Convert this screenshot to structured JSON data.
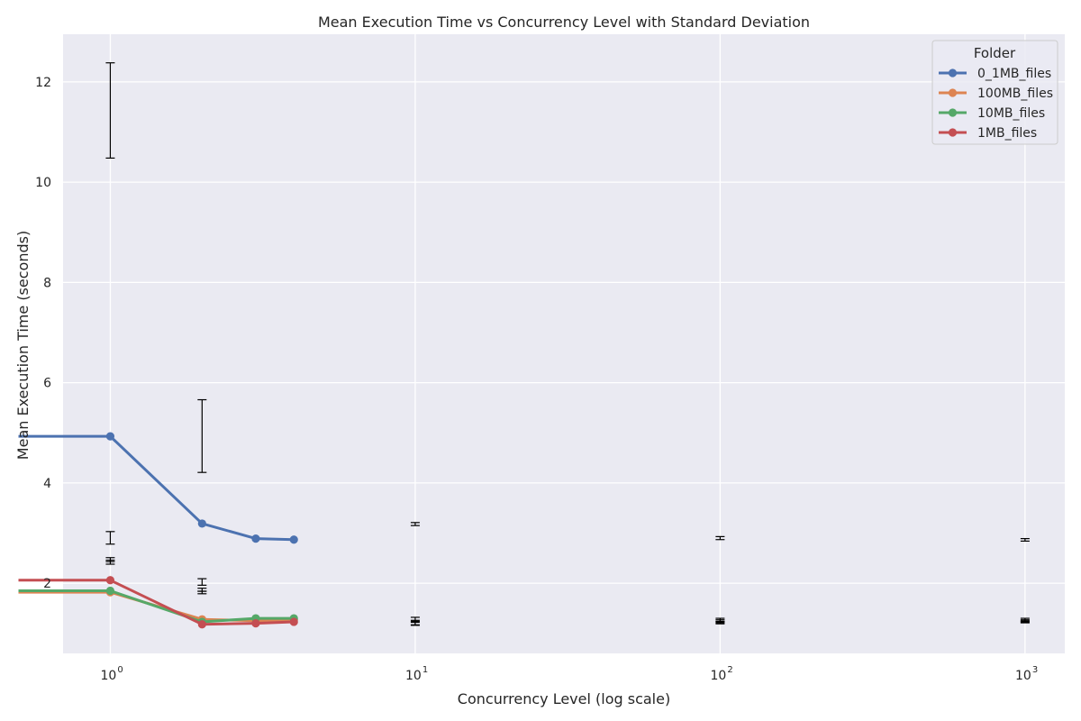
{
  "chart_data": {
    "type": "line",
    "title": "Mean Execution Time vs Concurrency Level with Standard Deviation",
    "xlabel": "Concurrency Level (log scale)",
    "ylabel": "Mean Execution Time (seconds)",
    "xscale": "log",
    "xlim": [
      0.7,
      1350
    ],
    "ylim": [
      0.6,
      12.95
    ],
    "grid": true,
    "legend": {
      "title": "Folder",
      "position": "top-right"
    },
    "x_ticks": [
      {
        "value": 1,
        "base": "10",
        "exp": "0"
      },
      {
        "value": 10,
        "base": "10",
        "exp": "1"
      },
      {
        "value": 100,
        "base": "10",
        "exp": "2"
      },
      {
        "value": 1000,
        "base": "10",
        "exp": "3"
      }
    ],
    "y_ticks": [
      {
        "value": 2,
        "label": "2"
      },
      {
        "value": 4,
        "label": "4"
      },
      {
        "value": 6,
        "label": "6"
      },
      {
        "value": 8,
        "label": "8"
      },
      {
        "value": 10,
        "label": "10"
      },
      {
        "value": 12,
        "label": "12"
      }
    ],
    "series": [
      {
        "name": "0_1MB_files",
        "color": "#4c72b0",
        "points": [
          {
            "x": 0.5,
            "y": 4.93
          },
          {
            "x": 1,
            "y": 4.93
          },
          {
            "x": 2,
            "y": 3.19
          },
          {
            "x": 3,
            "y": 2.89
          },
          {
            "x": 4,
            "y": 2.87
          }
        ]
      },
      {
        "name": "100MB_files",
        "color": "#dd8452",
        "points": [
          {
            "x": 0.5,
            "y": 1.82
          },
          {
            "x": 1,
            "y": 1.82
          },
          {
            "x": 2,
            "y": 1.28
          },
          {
            "x": 3,
            "y": 1.25
          },
          {
            "x": 4,
            "y": 1.27
          }
        ]
      },
      {
        "name": "10MB_files",
        "color": "#55a868",
        "points": [
          {
            "x": 0.5,
            "y": 1.85
          },
          {
            "x": 1,
            "y": 1.85
          },
          {
            "x": 2,
            "y": 1.23
          },
          {
            "x": 3,
            "y": 1.3
          },
          {
            "x": 4,
            "y": 1.3
          }
        ]
      },
      {
        "name": "1MB_files",
        "color": "#c44e52",
        "points": [
          {
            "x": 0.5,
            "y": 2.06
          },
          {
            "x": 1,
            "y": 2.06
          },
          {
            "x": 2,
            "y": 1.18
          },
          {
            "x": 3,
            "y": 1.2
          },
          {
            "x": 4,
            "y": 1.23
          }
        ]
      }
    ],
    "error_bars": [
      {
        "x": 1,
        "low": 10.48,
        "high": 12.38
      },
      {
        "x": 1,
        "low": 2.78,
        "high": 3.03
      },
      {
        "x": 1,
        "low": 2.43,
        "high": 2.51
      },
      {
        "x": 1,
        "low": 2.38,
        "high": 2.46
      },
      {
        "x": 2,
        "low": 4.21,
        "high": 5.66
      },
      {
        "x": 2,
        "low": 1.96,
        "high": 2.09
      },
      {
        "x": 2,
        "low": 1.84,
        "high": 1.9
      },
      {
        "x": 2,
        "low": 1.79,
        "high": 1.84
      },
      {
        "x": 10,
        "low": 3.15,
        "high": 3.21
      },
      {
        "x": 10,
        "low": 1.24,
        "high": 1.32
      },
      {
        "x": 10,
        "low": 1.17,
        "high": 1.26
      },
      {
        "x": 10,
        "low": 1.16,
        "high": 1.22
      },
      {
        "x": 100,
        "low": 2.87,
        "high": 2.93
      },
      {
        "x": 100,
        "low": 1.23,
        "high": 1.3
      },
      {
        "x": 100,
        "low": 1.21,
        "high": 1.27
      },
      {
        "x": 100,
        "low": 1.19,
        "high": 1.24
      },
      {
        "x": 1000,
        "low": 2.84,
        "high": 2.89
      },
      {
        "x": 1000,
        "low": 1.24,
        "high": 1.3
      },
      {
        "x": 1000,
        "low": 1.22,
        "high": 1.27
      },
      {
        "x": 1000,
        "low": 1.21,
        "high": 1.25
      }
    ]
  }
}
